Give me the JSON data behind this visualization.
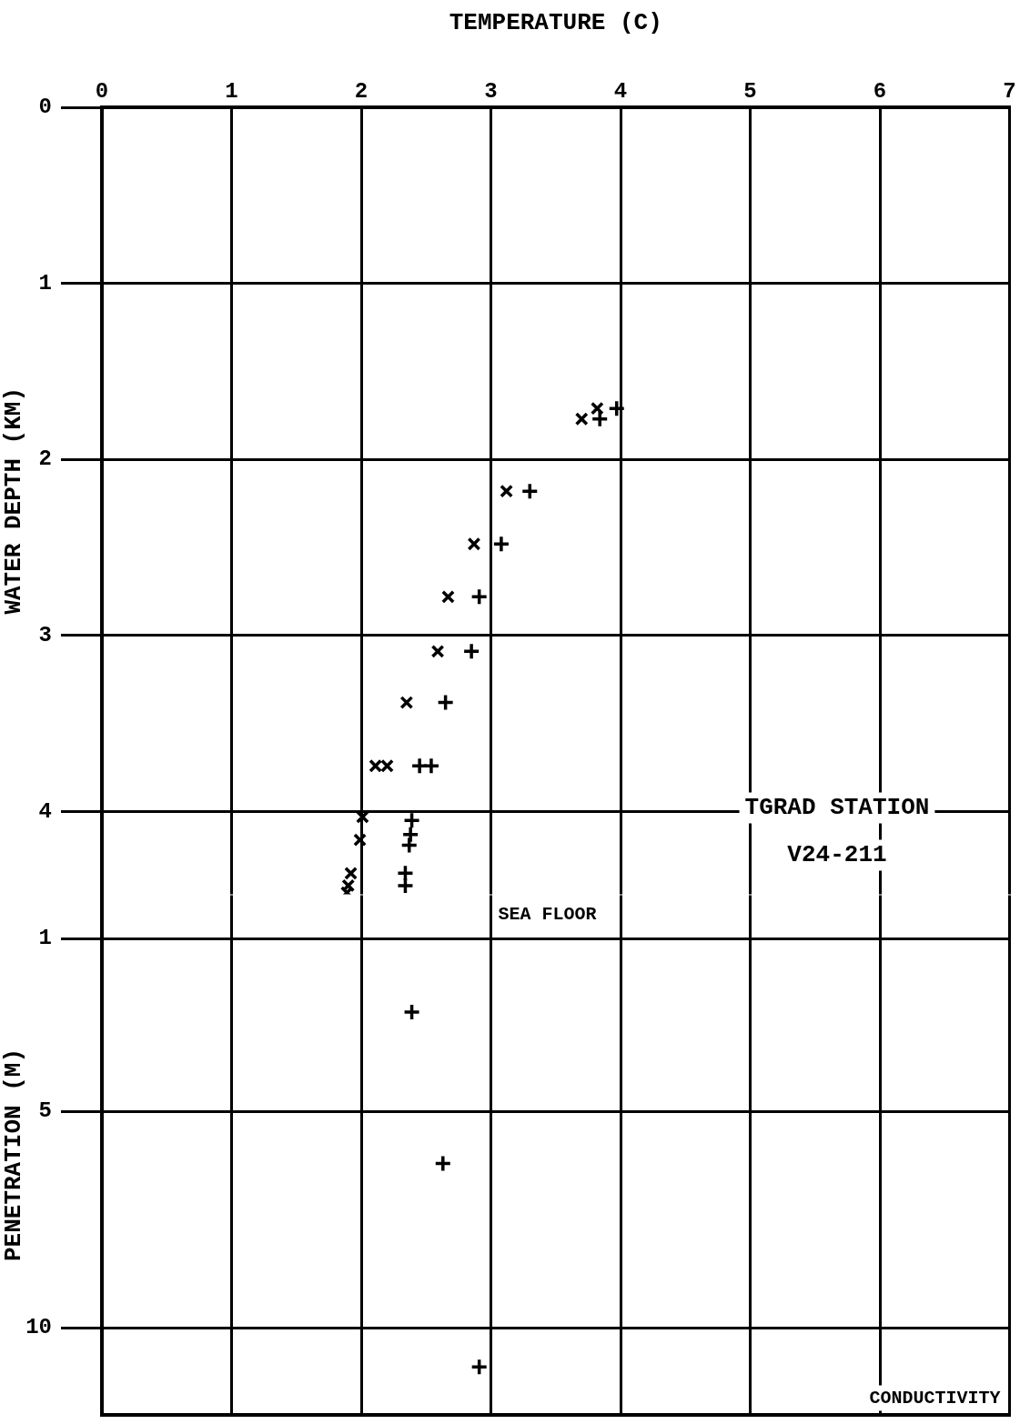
{
  "chart_data": [
    {
      "type": "scatter",
      "xlabel": "TEMPERATURE (C)",
      "ylabel": "WATER DEPTH (KM)",
      "xlim": [
        0,
        7
      ],
      "xticks": [
        0,
        1,
        2,
        3,
        4,
        5,
        6,
        7
      ],
      "ylim": [
        4.47,
        0
      ],
      "yticks": [
        0,
        1,
        2,
        3,
        4
      ],
      "grid": true,
      "legend": false,
      "series": [
        {
          "color": "#000000",
          "marker": "x",
          "x": [
            3.7,
            3.82,
            3.12,
            2.87,
            2.67,
            2.59,
            2.35,
            2.11,
            2.2,
            2.01,
            1.99,
            1.92,
            1.9,
            1.89
          ],
          "values": [
            1.77,
            1.71,
            2.18,
            2.48,
            2.78,
            3.09,
            3.38,
            3.74,
            3.74,
            4.03,
            4.16,
            4.35,
            4.42,
            4.46
          ]
        },
        {
          "color": "#000000",
          "marker": "cross",
          "x": [
            3.97,
            3.84,
            3.3,
            3.08,
            2.91,
            2.85,
            2.65,
            2.45,
            2.54,
            2.39,
            2.38,
            2.37,
            2.34,
            2.34
          ],
          "values": [
            1.71,
            1.77,
            2.18,
            2.48,
            2.78,
            3.09,
            3.38,
            3.74,
            3.74,
            4.05,
            4.13,
            4.19,
            4.35,
            4.42
          ]
        }
      ],
      "annotations": [
        "TGRAD STATION",
        "V24-211"
      ]
    },
    {
      "type": "scatter",
      "ylabel": "PENETRATION (M)",
      "xlim": [
        0,
        7
      ],
      "ylim": [
        12,
        0
      ],
      "yticks": [
        1,
        5,
        10
      ],
      "grid": true,
      "legend": false,
      "tick_labels": "y",
      "series": [
        {
          "color": "#000000",
          "marker": "cross",
          "x": [
            2.39,
            2.63,
            2.91
          ],
          "values": [
            2.7,
            6.2,
            10.9
          ]
        }
      ],
      "annotations": [
        "SEA FLOOR",
        "CONDUCTIVITY"
      ]
    }
  ]
}
